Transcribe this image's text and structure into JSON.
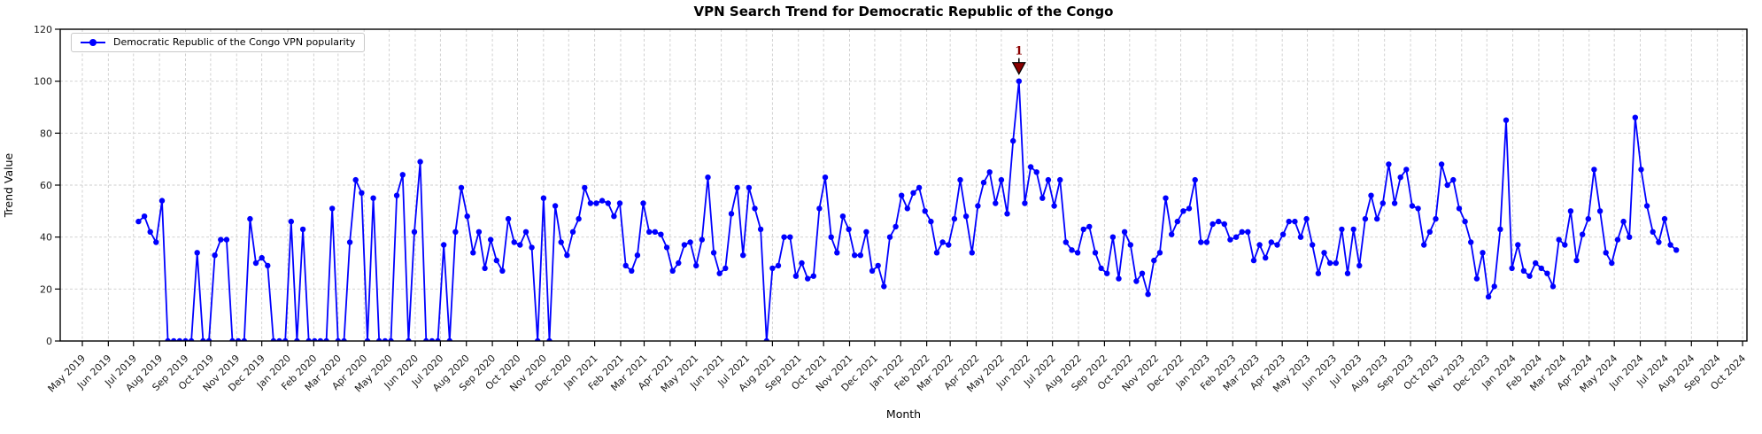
{
  "colors": {
    "line": "#0000ff",
    "marker": "#0000ff",
    "annotation": "#8b0000",
    "grid": "#cccccc",
    "axis": "#000000",
    "tick_label": "#1a1a1a",
    "legend_border": "#c9c9c9"
  },
  "chart_data": {
    "type": "line",
    "title": "VPN Search Trend for Democratic Republic of the Congo",
    "xlabel": "Month",
    "ylabel": "Trend Value",
    "ylim": [
      0,
      120
    ],
    "yticks": [
      0,
      20,
      40,
      60,
      80,
      100,
      120
    ],
    "grid": true,
    "legend_position": "upper left",
    "x_tick_labels": [
      "May 2019",
      "Jun 2019",
      "Jul 2019",
      "Aug 2019",
      "Sep 2019",
      "Oct 2019",
      "Nov 2019",
      "Dec 2019",
      "Jan 2020",
      "Feb 2020",
      "Mar 2020",
      "Apr 2020",
      "May 2020",
      "Jun 2020",
      "Jul 2020",
      "Aug 2020",
      "Sep 2020",
      "Oct 2020",
      "Nov 2020",
      "Dec 2020",
      "Jan 2021",
      "Feb 2021",
      "Mar 2021",
      "Apr 2021",
      "May 2021",
      "Jun 2021",
      "Jul 2021",
      "Aug 2021",
      "Sep 2021",
      "Oct 2021",
      "Nov 2021",
      "Dec 2021",
      "Jan 2022",
      "Feb 2022",
      "Mar 2022",
      "Apr 2022",
      "May 2022",
      "Jun 2022",
      "Jul 2022",
      "Aug 2022",
      "Sep 2022",
      "Oct 2022",
      "Nov 2022",
      "Dec 2022",
      "Jan 2023",
      "Feb 2023",
      "Mar 2023",
      "Apr 2023",
      "May 2023",
      "Jun 2023",
      "Jul 2023",
      "Aug 2023",
      "Sep 2023",
      "Oct 2023",
      "Nov 2023",
      "Dec 2023",
      "Jan 2024",
      "Feb 2024",
      "Mar 2024",
      "Apr 2024",
      "May 2024",
      "Jun 2024",
      "Jul 2024",
      "Aug 2024",
      "Sep 2024",
      "Oct 2024"
    ],
    "series": [
      {
        "name": "Democratic Republic of the Congo VPN popularity",
        "start_date": "2019-07-07",
        "interval_days": 7,
        "values": [
          46,
          48,
          42,
          38,
          54,
          0,
          0,
          0,
          0,
          0,
          34,
          0,
          0,
          33,
          39,
          39,
          0,
          0,
          0,
          47,
          30,
          32,
          29,
          0,
          0,
          0,
          46,
          0,
          43,
          0,
          0,
          0,
          0,
          51,
          0,
          0,
          38,
          62,
          57,
          0,
          55,
          0,
          0,
          0,
          56,
          64,
          0,
          42,
          69,
          0,
          0,
          0,
          37,
          0,
          42,
          59,
          48,
          34,
          42,
          28,
          39,
          31,
          27,
          47,
          38,
          37,
          42,
          36,
          0,
          55,
          0,
          52,
          38,
          33,
          42,
          47,
          59,
          53,
          53,
          54,
          53,
          48,
          53,
          29,
          27,
          33,
          53,
          42,
          42,
          41,
          36,
          27,
          30,
          37,
          38,
          29,
          39,
          63,
          34,
          26,
          28,
          49,
          59,
          33,
          59,
          51,
          43,
          0,
          28,
          29,
          40,
          40,
          25,
          30,
          24,
          25,
          51,
          63,
          40,
          34,
          48,
          43,
          33,
          33,
          42,
          27,
          29,
          21,
          40,
          44,
          56,
          51,
          57,
          59,
          50,
          46,
          34,
          38,
          37,
          47,
          62,
          48,
          34,
          52,
          61,
          65,
          53,
          62,
          49,
          77,
          100,
          53,
          67,
          65,
          55,
          62,
          52,
          62,
          38,
          35,
          34,
          43,
          44,
          34,
          28,
          26,
          40,
          24,
          42,
          37,
          23,
          26,
          18,
          31,
          34,
          55,
          41,
          46,
          50,
          51,
          62,
          38,
          38,
          45,
          46,
          45,
          39,
          40,
          42,
          42,
          31,
          37,
          32,
          38,
          37,
          41,
          46,
          46,
          40,
          47,
          37,
          26,
          34,
          30,
          30,
          43,
          26,
          43,
          29,
          47,
          56,
          47,
          53,
          68,
          53,
          63,
          66,
          52,
          51,
          37,
          42,
          47,
          68,
          60,
          62,
          51,
          46,
          38,
          24,
          34,
          17,
          21,
          43,
          85,
          28,
          37,
          27,
          25,
          30,
          28,
          26,
          21,
          39,
          37,
          50,
          31,
          41,
          47,
          66,
          50,
          34,
          30,
          39,
          46,
          40,
          86,
          66,
          52,
          42,
          38,
          47,
          37,
          35
        ]
      }
    ],
    "annotations": [
      {
        "label": "1",
        "value": 100,
        "note": "marks the maximum data point"
      }
    ]
  }
}
